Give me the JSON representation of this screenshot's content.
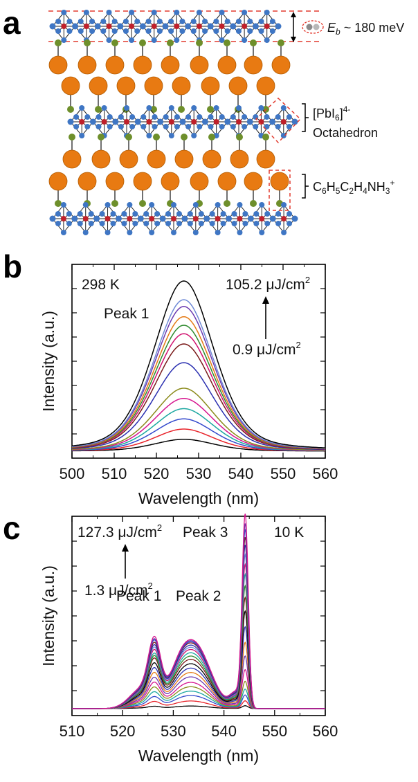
{
  "panels": {
    "a": "a",
    "b": "b",
    "c": "c"
  },
  "structure": {
    "eb_symbol": "E",
    "eb_sub": "b",
    "eb_value": " ~ 180 meV",
    "octa_label_1": "[PbI",
    "octa_label_1_sub": "6",
    "octa_label_1_tail": "]",
    "octa_label_1_sup": "4-",
    "octa_label_2": "Octahedron",
    "cation_parts": [
      "C",
      "6",
      "H",
      "5",
      "C",
      "2",
      "H",
      "4",
      "NH",
      "3",
      "+"
    ],
    "colors": {
      "pb": "#c0202a",
      "iodide": "#3f76c4",
      "organic": "#e87a12",
      "nitrogen": "#6e8f2b",
      "dash": "#e23a2e"
    }
  },
  "chart_data": [
    {
      "type": "line",
      "panel": "b",
      "xlabel": "Wavelength (nm)",
      "ylabel": "Intensity (a.u.)",
      "xlim": [
        500,
        560
      ],
      "x_ticks": [
        500,
        510,
        520,
        530,
        540,
        550,
        560
      ],
      "temperature": "298 K",
      "peak_label": "Peak 1",
      "fluence_high": "105.2 μJ/cm",
      "fluence_low": "0.9 μJ/cm",
      "fluence_sup": "2",
      "peak_center_nm": 526.5,
      "series": [
        {
          "color": "#000000",
          "peak": 0.07
        },
        {
          "color": "#e8232a",
          "peak": 0.13
        },
        {
          "color": "#3349cc",
          "peak": 0.19
        },
        {
          "color": "#1aa7a0",
          "peak": 0.25
        },
        {
          "color": "#d6148e",
          "peak": 0.31
        },
        {
          "color": "#8a8a1a",
          "peak": 0.37
        },
        {
          "color": "#2a2fb0",
          "peak": 0.52
        },
        {
          "color": "#7a1a1a",
          "peak": 0.63
        },
        {
          "color": "#d0106e",
          "peak": 0.69
        },
        {
          "color": "#2e8a2e",
          "peak": 0.74
        },
        {
          "color": "#e57a14",
          "peak": 0.79
        },
        {
          "color": "#6b3ab0",
          "peak": 0.85
        },
        {
          "color": "#6f8ad6",
          "peak": 0.89
        },
        {
          "color": "#000000",
          "peak": 1.0
        }
      ]
    },
    {
      "type": "line",
      "panel": "c",
      "xlabel": "Wavelength (nm)",
      "ylabel": "Intensity (a.u.)",
      "xlim": [
        510,
        560
      ],
      "x_ticks": [
        510,
        520,
        530,
        540,
        550,
        560
      ],
      "temperature": "10 K",
      "peak_labels": [
        "Peak 1",
        "Peak 2",
        "Peak 3"
      ],
      "fluence_high": "127.3 μJ/cm",
      "fluence_low": "1.3 μJ/cm",
      "fluence_sup": "2",
      "peak_positions_nm": [
        526.3,
        534.5,
        544.2
      ],
      "series": [
        {
          "color": "#000000",
          "p1": 0.01,
          "p2": 0.012,
          "p3": 0.015
        },
        {
          "color": "#e8232a",
          "p1": 0.03,
          "p2": 0.035,
          "p3": 0.04
        },
        {
          "color": "#3349cc",
          "p1": 0.05,
          "p2": 0.06,
          "p3": 0.07
        },
        {
          "color": "#1aa7a0",
          "p1": 0.07,
          "p2": 0.08,
          "p3": 0.1
        },
        {
          "color": "#8a8a1a",
          "p1": 0.09,
          "p2": 0.1,
          "p3": 0.14
        },
        {
          "color": "#d6148e",
          "p1": 0.11,
          "p2": 0.12,
          "p3": 0.2
        },
        {
          "color": "#6b3ab0",
          "p1": 0.13,
          "p2": 0.145,
          "p3": 0.27
        },
        {
          "color": "#e57a14",
          "p1": 0.15,
          "p2": 0.165,
          "p3": 0.34
        },
        {
          "color": "#2a2fb0",
          "p1": 0.17,
          "p2": 0.185,
          "p3": 0.42
        },
        {
          "color": "#000000",
          "p1": 0.19,
          "p2": 0.205,
          "p3": 0.5
        },
        {
          "color": "#7a1a1a",
          "p1": 0.21,
          "p2": 0.225,
          "p3": 0.57
        },
        {
          "color": "#2e8a2e",
          "p1": 0.22,
          "p2": 0.24,
          "p3": 0.63
        },
        {
          "color": "#1aa7a0",
          "p1": 0.23,
          "p2": 0.255,
          "p3": 0.69
        },
        {
          "color": "#d0106e",
          "p1": 0.245,
          "p2": 0.27,
          "p3": 0.74
        },
        {
          "color": "#6f8ad6",
          "p1": 0.255,
          "p2": 0.28,
          "p3": 0.79
        },
        {
          "color": "#2a2fb0",
          "p1": 0.265,
          "p2": 0.29,
          "p3": 0.84
        },
        {
          "color": "#7a1a1a",
          "p1": 0.275,
          "p2": 0.3,
          "p3": 0.88
        },
        {
          "color": "#3349cc",
          "p1": 0.285,
          "p2": 0.305,
          "p3": 0.92
        },
        {
          "color": "#6b3ab0",
          "p1": 0.29,
          "p2": 0.31,
          "p3": 0.95
        },
        {
          "color": "#d6148e",
          "p1": 0.3,
          "p2": 0.315,
          "p3": 1.0
        }
      ]
    }
  ]
}
